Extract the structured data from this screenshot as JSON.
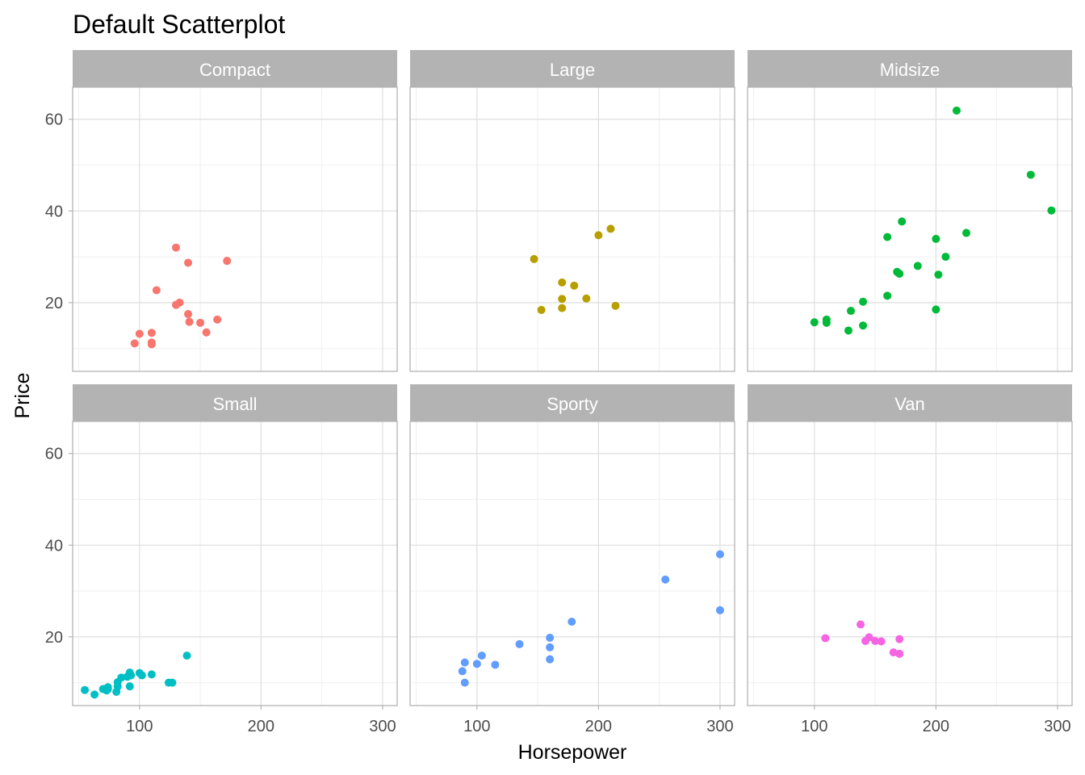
{
  "chart_data": {
    "type": "scatter",
    "title": "Default Scatterplot",
    "xlabel": "Horsepower",
    "ylabel": "Price",
    "xlim": [
      45,
      312
    ],
    "ylim": [
      5,
      67
    ],
    "x_ticks": [
      100,
      200,
      300
    ],
    "y_ticks": [
      20,
      40,
      60
    ],
    "x_minor": [
      50,
      150,
      250
    ],
    "y_minor": [
      10,
      30,
      50
    ],
    "grid": true,
    "facets": [
      {
        "name": "Compact",
        "color": "#F8766D",
        "points": [
          [
            96,
            11.1
          ],
          [
            100,
            13.2
          ],
          [
            110,
            13.4
          ],
          [
            110,
            11.3
          ],
          [
            110,
            10.9
          ],
          [
            114,
            22.7
          ],
          [
            130,
            32
          ],
          [
            130,
            19.5
          ],
          [
            133,
            20
          ],
          [
            140,
            17.5
          ],
          [
            140,
            28.7
          ],
          [
            141,
            15.8
          ],
          [
            150,
            15.6
          ],
          [
            155,
            13.5
          ],
          [
            164,
            16.3
          ],
          [
            172,
            29.1
          ]
        ]
      },
      {
        "name": "Large",
        "color": "#B79F00",
        "points": [
          [
            147,
            29.5
          ],
          [
            153,
            18.4
          ],
          [
            170,
            24.4
          ],
          [
            170,
            20.8
          ],
          [
            170,
            18.8
          ],
          [
            180,
            23.7
          ],
          [
            190,
            20.9
          ],
          [
            200,
            34.7
          ],
          [
            210,
            36.1
          ],
          [
            214,
            19.3
          ]
        ]
      },
      {
        "name": "Midsize",
        "color": "#00BA38",
        "points": [
          [
            100,
            15.7
          ],
          [
            110,
            16.3
          ],
          [
            110,
            15.6
          ],
          [
            128,
            13.9
          ],
          [
            130,
            18.2
          ],
          [
            140,
            15
          ],
          [
            140,
            20.2
          ],
          [
            160,
            21.5
          ],
          [
            160,
            34.3
          ],
          [
            168,
            26.7
          ],
          [
            170,
            26.3
          ],
          [
            172,
            37.7
          ],
          [
            185,
            28
          ],
          [
            200,
            33.9
          ],
          [
            200,
            18.5
          ],
          [
            202,
            26.1
          ],
          [
            208,
            30
          ],
          [
            225,
            35.2
          ],
          [
            217,
            61.9
          ],
          [
            278,
            47.9
          ],
          [
            295,
            40.1
          ]
        ]
      },
      {
        "name": "Small",
        "color": "#00BFC4",
        "points": [
          [
            55,
            8.4
          ],
          [
            63,
            7.4
          ],
          [
            70,
            8.6
          ],
          [
            73,
            8.3
          ],
          [
            74,
            9
          ],
          [
            74,
            8.6
          ],
          [
            81,
            8
          ],
          [
            82,
            10.1
          ],
          [
            82,
            9.2
          ],
          [
            85,
            11.1
          ],
          [
            90,
            11.3
          ],
          [
            92,
            12.2
          ],
          [
            92,
            9.2
          ],
          [
            93,
            11.6
          ],
          [
            100,
            12.1
          ],
          [
            102,
            11.6
          ],
          [
            110,
            11.8
          ],
          [
            124,
            10
          ],
          [
            127,
            10
          ],
          [
            139,
            15.9
          ]
        ]
      },
      {
        "name": "Sporty",
        "color": "#619CFF",
        "points": [
          [
            88,
            12.5
          ],
          [
            90,
            14.4
          ],
          [
            90,
            10
          ],
          [
            100,
            14.1
          ],
          [
            104,
            15.9
          ],
          [
            115,
            13.9
          ],
          [
            135,
            18.4
          ],
          [
            160,
            19.8
          ],
          [
            160,
            17.7
          ],
          [
            160,
            15.1
          ],
          [
            178,
            23.3
          ],
          [
            255,
            32.5
          ],
          [
            300,
            38
          ],
          [
            300,
            25.8
          ]
        ]
      },
      {
        "name": "Van",
        "color": "#F564E3",
        "points": [
          [
            109,
            19.7
          ],
          [
            138,
            22.7
          ],
          [
            142,
            19.1
          ],
          [
            145,
            19.9
          ],
          [
            150,
            19.1
          ],
          [
            155,
            19
          ],
          [
            165,
            16.6
          ],
          [
            170,
            16.3
          ],
          [
            170,
            19.5
          ]
        ]
      }
    ]
  }
}
